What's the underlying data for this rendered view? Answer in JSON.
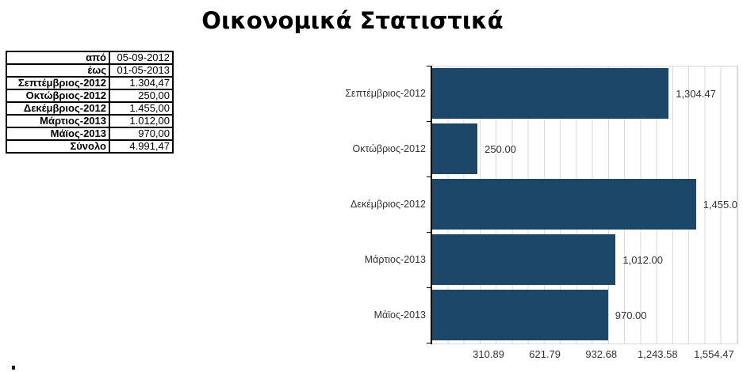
{
  "page": {
    "title": "Οικονομικά Στατιστικά"
  },
  "table": {
    "rows": [
      {
        "label": "από",
        "value": "05-09-2012"
      },
      {
        "label": "έως",
        "value": "01-05-2013"
      },
      {
        "label": "Σεπτέμβριος-2012",
        "value": "1.304,47"
      },
      {
        "label": "Οκτώβριος-2012",
        "value": "250,00"
      },
      {
        "label": "Δεκέμβριος-2012",
        "value": "1.455,00"
      },
      {
        "label": "Μάρτιος-2013",
        "value": "1.012,00"
      },
      {
        "label": "Μάϊος-2013",
        "value": "970,00"
      },
      {
        "label": "Σύνολο",
        "value": "4.991,47"
      }
    ]
  },
  "chart_data": {
    "type": "bar",
    "orientation": "horizontal",
    "title": "",
    "categories": [
      "Σεπτέμβριος-2012",
      "Οκτώβριος-2012",
      "Δεκέμβριος-2012",
      "Μάρτιος-2013",
      "Μάϊος-2013"
    ],
    "values": [
      1304.47,
      250.0,
      1455.0,
      1012.0,
      970.0
    ],
    "value_labels": [
      "1,304.47",
      "250.00",
      "1,455.0",
      "1,012.00",
      "970.00"
    ],
    "x_ticks": [
      310.89,
      621.79,
      932.68,
      1243.58,
      1554.47
    ],
    "x_tick_labels": [
      "310.89",
      "621.79",
      "932.68",
      "1,243.58",
      "1,554.47"
    ],
    "axis_min": 0,
    "axis_max": 1684,
    "grid": true,
    "legend": false,
    "bar_color": "#1d4769",
    "grid_color": "#d9d9d9",
    "label_color": "#333333"
  }
}
